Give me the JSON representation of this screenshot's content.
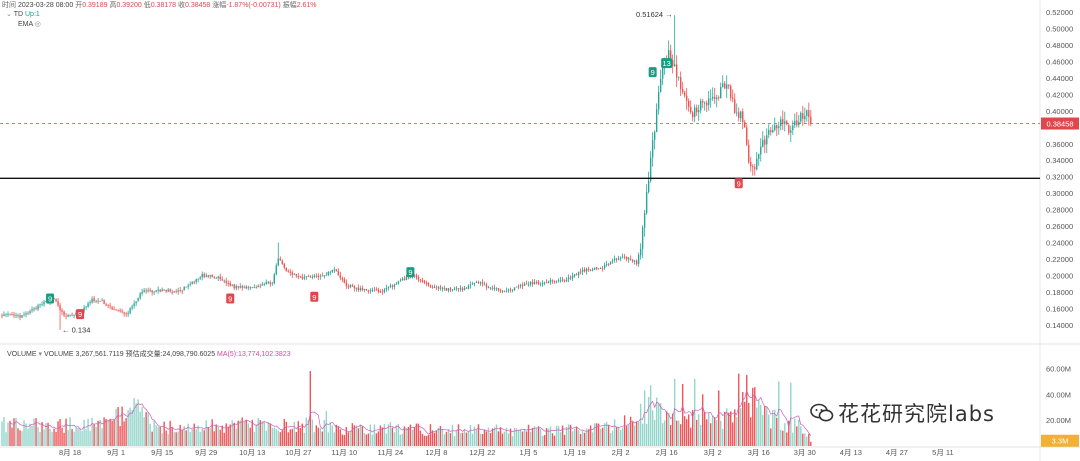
{
  "header": {
    "line1": {
      "time_label": "时间",
      "time_value": "2023-03-28 08:00",
      "open_label": "开",
      "open_value": "0.39189",
      "high_label": "高",
      "high_value": "0.39200",
      "low_label": "低",
      "low_value": "0.38178",
      "close_label": "收",
      "close_value": "0.38458",
      "change_label": "涨幅",
      "change_value": "-1.87%(-0.00731)",
      "amp_label": "振幅",
      "amp_value": "2.61%"
    },
    "td_label": "TD",
    "td_value": "Up:1",
    "ema_label": "EMA"
  },
  "volume_header": {
    "label": "VOLUME",
    "volume_text": "VOLUME 3,267,561.7119",
    "est_text": "预估成交量:24,098,790.6025",
    "ma_text": "MA(5):13,774,102.3823"
  },
  "watermark": "花花研究院labs",
  "colors": {
    "up": "#26a69a",
    "down": "#ef5350",
    "current": "#e0474c",
    "ma": "#d15bbf",
    "support": "#111111",
    "axis_text": "#555555"
  },
  "chart_data": [
    {
      "type": "candlestick",
      "title": "",
      "ylim": [
        0.13,
        0.525
      ],
      "y_ticks": [
        "0.52000",
        "0.50000",
        "0.48000",
        "0.46000",
        "0.44000",
        "0.42000",
        "0.40000",
        "0.36000",
        "0.34000",
        "0.32000",
        "0.30000",
        "0.28000",
        "0.26000",
        "0.24000",
        "0.22000",
        "0.20000",
        "0.18000",
        "0.16000",
        "0.14000"
      ],
      "y_tick_values": [
        0.52,
        0.5,
        0.48,
        0.46,
        0.44,
        0.42,
        0.4,
        0.36,
        0.34,
        0.32,
        0.3,
        0.28,
        0.26,
        0.24,
        0.22,
        0.2,
        0.18,
        0.16,
        0.14
      ],
      "x_ticks": [
        "8月 18",
        "9月 1",
        "9月 15",
        "9月 29",
        "10月 13",
        "10月 27",
        "11月 10",
        "11月 24",
        "12月 8",
        "12月 22",
        "1月 5",
        "1月 19",
        "2月 2",
        "2月 16",
        "3月 2",
        "3月 16",
        "3月 30",
        "4月 13",
        "4月 27",
        "5月 11"
      ],
      "x_tick_index": [
        34,
        57,
        80,
        102,
        125,
        148,
        171,
        194,
        217,
        240,
        263,
        286,
        309,
        332,
        355,
        378,
        401,
        424,
        447,
        470
      ],
      "current_price": "0.38458",
      "current_price_value": 0.38458,
      "support_line": 0.318,
      "high_annotation": {
        "label": "0.51624",
        "index": 336,
        "value": 0.51624
      },
      "low_annotation": {
        "label": "0.134",
        "index": 29,
        "value": 0.134
      },
      "td_markers": [
        {
          "label": "9",
          "index": 24,
          "value": 0.172,
          "kind": "up"
        },
        {
          "label": "9",
          "index": 39,
          "value": 0.153,
          "kind": "down"
        },
        {
          "label": "9",
          "index": 114,
          "value": 0.172,
          "kind": "down"
        },
        {
          "label": "9",
          "index": 156,
          "value": 0.174,
          "kind": "down"
        },
        {
          "label": "9",
          "index": 204,
          "value": 0.204,
          "kind": "up"
        },
        {
          "label": "9",
          "index": 325,
          "value": 0.447,
          "kind": "up"
        },
        {
          "label": "13",
          "index": 332,
          "value": 0.458,
          "kind": "up"
        },
        {
          "label": "9",
          "index": 368,
          "value": 0.312,
          "kind": "down"
        }
      ],
      "anchors": [
        [
          0,
          0.152
        ],
        [
          10,
          0.15
        ],
        [
          14,
          0.156
        ],
        [
          22,
          0.168
        ],
        [
          26,
          0.173
        ],
        [
          31,
          0.15
        ],
        [
          39,
          0.155
        ],
        [
          45,
          0.17
        ],
        [
          50,
          0.168
        ],
        [
          55,
          0.16
        ],
        [
          62,
          0.152
        ],
        [
          70,
          0.18
        ],
        [
          80,
          0.182
        ],
        [
          88,
          0.18
        ],
        [
          95,
          0.19
        ],
        [
          100,
          0.2
        ],
        [
          108,
          0.197
        ],
        [
          116,
          0.186
        ],
        [
          125,
          0.186
        ],
        [
          135,
          0.192
        ],
        [
          138,
          0.22
        ],
        [
          143,
          0.203
        ],
        [
          150,
          0.198
        ],
        [
          160,
          0.2
        ],
        [
          166,
          0.207
        ],
        [
          172,
          0.188
        ],
        [
          180,
          0.182
        ],
        [
          190,
          0.181
        ],
        [
          198,
          0.192
        ],
        [
          205,
          0.2
        ],
        [
          214,
          0.187
        ],
        [
          222,
          0.183
        ],
        [
          230,
          0.183
        ],
        [
          238,
          0.192
        ],
        [
          245,
          0.183
        ],
        [
          255,
          0.183
        ],
        [
          262,
          0.19
        ],
        [
          272,
          0.192
        ],
        [
          282,
          0.195
        ],
        [
          290,
          0.206
        ],
        [
          300,
          0.21
        ],
        [
          308,
          0.222
        ],
        [
          314,
          0.22
        ],
        [
          317,
          0.215
        ],
        [
          319,
          0.236
        ],
        [
          322,
          0.3
        ],
        [
          325,
          0.36
        ],
        [
          328,
          0.42
        ],
        [
          330,
          0.455
        ],
        [
          333,
          0.47
        ],
        [
          336,
          0.455
        ],
        [
          340,
          0.42
        ],
        [
          345,
          0.395
        ],
        [
          348,
          0.405
        ],
        [
          352,
          0.41
        ],
        [
          356,
          0.412
        ],
        [
          360,
          0.43
        ],
        [
          363,
          0.432
        ],
        [
          366,
          0.398
        ],
        [
          370,
          0.392
        ],
        [
          373,
          0.34
        ],
        [
          376,
          0.333
        ],
        [
          380,
          0.36
        ],
        [
          385,
          0.382
        ],
        [
          390,
          0.388
        ],
        [
          394,
          0.375
        ],
        [
          398,
          0.392
        ],
        [
          402,
          0.4
        ],
        [
          404,
          0.392
        ]
      ],
      "close_last": 0.38458,
      "volume": {
        "ylim": [
          0,
          65000000
        ],
        "y_ticks": [
          "60.00M",
          "40.00M",
          "20.00M"
        ],
        "y_tick_values": [
          60000000,
          40000000,
          20000000
        ],
        "current_label": "3.3M",
        "current_value": 3300000,
        "anchors": [
          [
            0,
            17000000
          ],
          [
            30,
            15000000
          ],
          [
            65,
            24000000
          ],
          [
            70,
            26000000
          ],
          [
            75,
            15000000
          ],
          [
            110,
            15000000
          ],
          [
            130,
            17000000
          ],
          [
            150,
            15000000
          ],
          [
            200,
            13000000
          ],
          [
            250,
            12000000
          ],
          [
            290,
            12000000
          ],
          [
            310,
            16000000
          ],
          [
            320,
            26000000
          ],
          [
            325,
            30000000
          ],
          [
            335,
            22000000
          ],
          [
            345,
            22000000
          ],
          [
            355,
            20000000
          ],
          [
            365,
            22000000
          ],
          [
            372,
            40000000
          ],
          [
            380,
            25000000
          ],
          [
            390,
            18000000
          ],
          [
            400,
            14000000
          ],
          [
            404,
            6000000
          ]
        ],
        "spikes": [
          [
            66,
            37000000
          ],
          [
            68,
            36000000
          ],
          [
            154,
            58000000
          ],
          [
            152,
            22000000
          ],
          [
            162,
            27000000
          ],
          [
            321,
            43000000
          ],
          [
            324,
            47000000
          ],
          [
            328,
            33000000
          ],
          [
            336,
            52000000
          ],
          [
            340,
            48000000
          ],
          [
            346,
            52000000
          ],
          [
            350,
            40000000
          ],
          [
            358,
            43000000
          ],
          [
            368,
            56000000
          ],
          [
            372,
            55000000
          ],
          [
            388,
            50000000
          ],
          [
            394,
            49000000
          ]
        ]
      }
    }
  ]
}
